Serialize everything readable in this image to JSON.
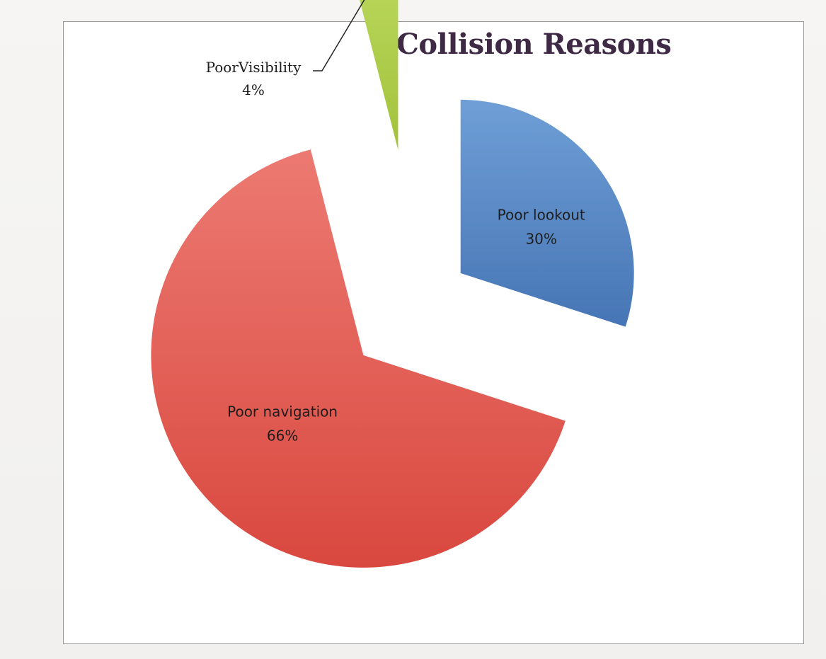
{
  "chart_data": {
    "type": "pie",
    "title": "Collision Reasons",
    "slices": [
      {
        "label": "Poor lookout",
        "value": 30,
        "value_label": "30%",
        "color": "#6f9fd6",
        "color_dark": "#4675b5"
      },
      {
        "label": "Poor navigation",
        "value": 66,
        "value_label": "66%",
        "color": "#ec7a72",
        "color_dark": "#d9483f"
      },
      {
        "label": "PoorVisibility",
        "value": 4,
        "value_label": "4%",
        "color": "#b9d65a",
        "color_dark": "#a2c23c"
      }
    ],
    "exploded": true,
    "legend": "none"
  }
}
